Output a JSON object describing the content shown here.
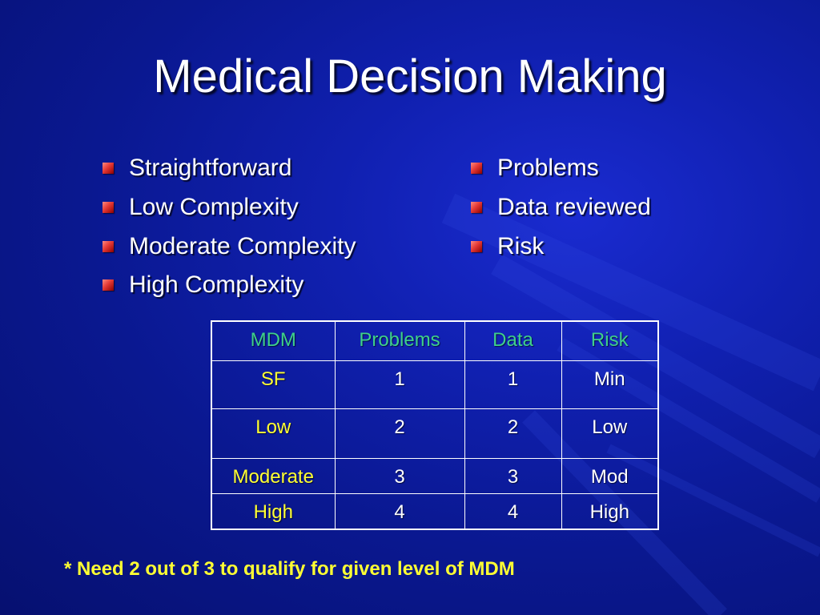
{
  "slide": {
    "title": "Medical Decision Making",
    "left_bullets": [
      "Straightforward",
      "Low Complexity",
      "Moderate Complexity",
      "High Complexity"
    ],
    "right_bullets": [
      "Problems",
      "Data reviewed",
      "Risk"
    ],
    "table": {
      "headers": [
        "MDM",
        "Problems",
        "Data",
        "Risk"
      ],
      "rows": [
        [
          "SF",
          "1",
          "1",
          "Min"
        ],
        [
          "Low",
          "2",
          "2",
          "Low"
        ],
        [
          "Moderate",
          "3",
          "3",
          "Mod"
        ],
        [
          "High",
          "4",
          "4",
          "High"
        ]
      ]
    },
    "footnote": "* Need 2 out of 3 to qualify for given level of MDM"
  },
  "colors": {
    "background": "#0a1890",
    "title_text": "#ffffff",
    "header_text": "#3fd08a",
    "row_label_text": "#ffff33",
    "footnote_text": "#ffff33",
    "bullet": "#e53935"
  }
}
